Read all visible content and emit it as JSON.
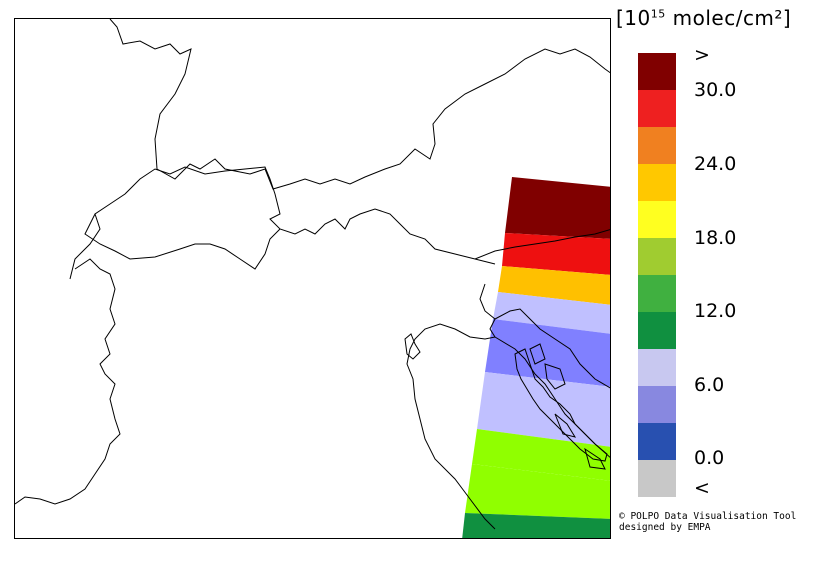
{
  "legend": {
    "unit_prefix": "[10",
    "unit_exponent": "15",
    "unit_suffix": " molec/cm²]",
    "over_label": ">",
    "under_label": "<",
    "tick_labels": [
      "30.0",
      "24.0",
      "18.0",
      "12.0",
      "6.0",
      "0.0"
    ],
    "colors": [
      "#800000",
      "#ee2020",
      "#f08020",
      "#ffc800",
      "#ffff20",
      "#a0cc30",
      "#40b040",
      "#109040",
      "#c8c8f0",
      "#8888e0",
      "#2850b0",
      "#c8c8c8"
    ]
  },
  "satellite_swath": {
    "colors": [
      "#800000",
      "#ee1010",
      "#ffc000",
      "#c0c0ff",
      "#8080ff",
      "#c0c0ff",
      "#90ff00",
      "#90ff00",
      "#109040"
    ]
  },
  "credits": {
    "line1": "© POLPO Data Visualisation Tool",
    "line2": "  designed by EMPA"
  }
}
